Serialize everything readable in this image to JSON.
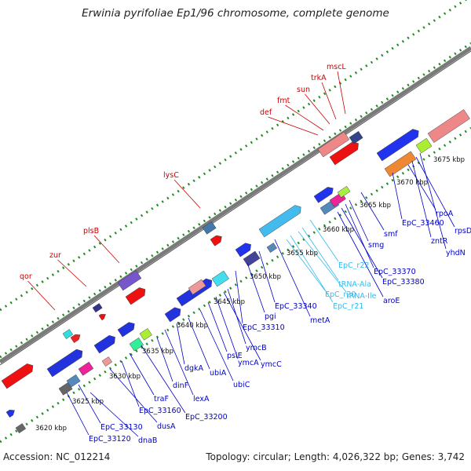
{
  "title": "Erwinia pyrifoliae Ep1/96 chromosome, complete genome",
  "footer": {
    "accession": "Accession: NC_012214",
    "summary": "Topology: circular; Length: 4,026,322 bp; Genes: 3,742"
  },
  "colors": {
    "forward_label": "#cc0000",
    "reverse_label": "#0000cc",
    "rna_label": "#33bbee",
    "backbone": "#7a7a7a",
    "ticks": "#228b22"
  },
  "ticks": [
    {
      "label": "3620 kbp",
      "kb": 3620
    },
    {
      "label": "3625 kbp",
      "kb": 3625
    },
    {
      "label": "3630 kbp",
      "kb": 3630
    },
    {
      "label": "3635 kbp",
      "kb": 3635
    },
    {
      "label": "3640 kbp",
      "kb": 3640
    },
    {
      "label": "3645 kbp",
      "kb": 3645
    },
    {
      "label": "3650 kbp",
      "kb": 3650
    },
    {
      "label": "3655 kbp",
      "kb": 3655
    },
    {
      "label": "3660 kbp",
      "kb": 3660
    },
    {
      "label": "3665 kbp",
      "kb": 3665
    },
    {
      "label": "3670 kbp",
      "kb": 3670
    },
    {
      "label": "3675 kbp",
      "kb": 3675
    }
  ],
  "forward_genes": [
    "qor",
    "zur",
    "plsB",
    "lysC",
    "def",
    "fmt",
    "sun",
    "trkA",
    "mscL"
  ],
  "reverse_genes": [
    "EpC_33120",
    "dnaB",
    "EpC_33130",
    "dusA",
    "EpC_33160",
    "traF",
    "EpC_33200",
    "dinF",
    "lexA",
    "dgkA",
    "ubiA",
    "ubiC",
    "psiE",
    "ymcA",
    "ymcC",
    "ymcB",
    "EpC_33310",
    "pgi",
    "EpC_33340",
    "metA",
    "aroE",
    "EpC_33380",
    "EpC_33370",
    "smg",
    "smf",
    "EpC_33460",
    "rpoA",
    "zntR",
    "rpsD",
    "yhdN"
  ],
  "rna_genes": [
    "EpC_r21",
    "EpC_r20",
    "tRNA-Ile",
    "tRNA-Ala",
    "EpC_r22"
  ]
}
